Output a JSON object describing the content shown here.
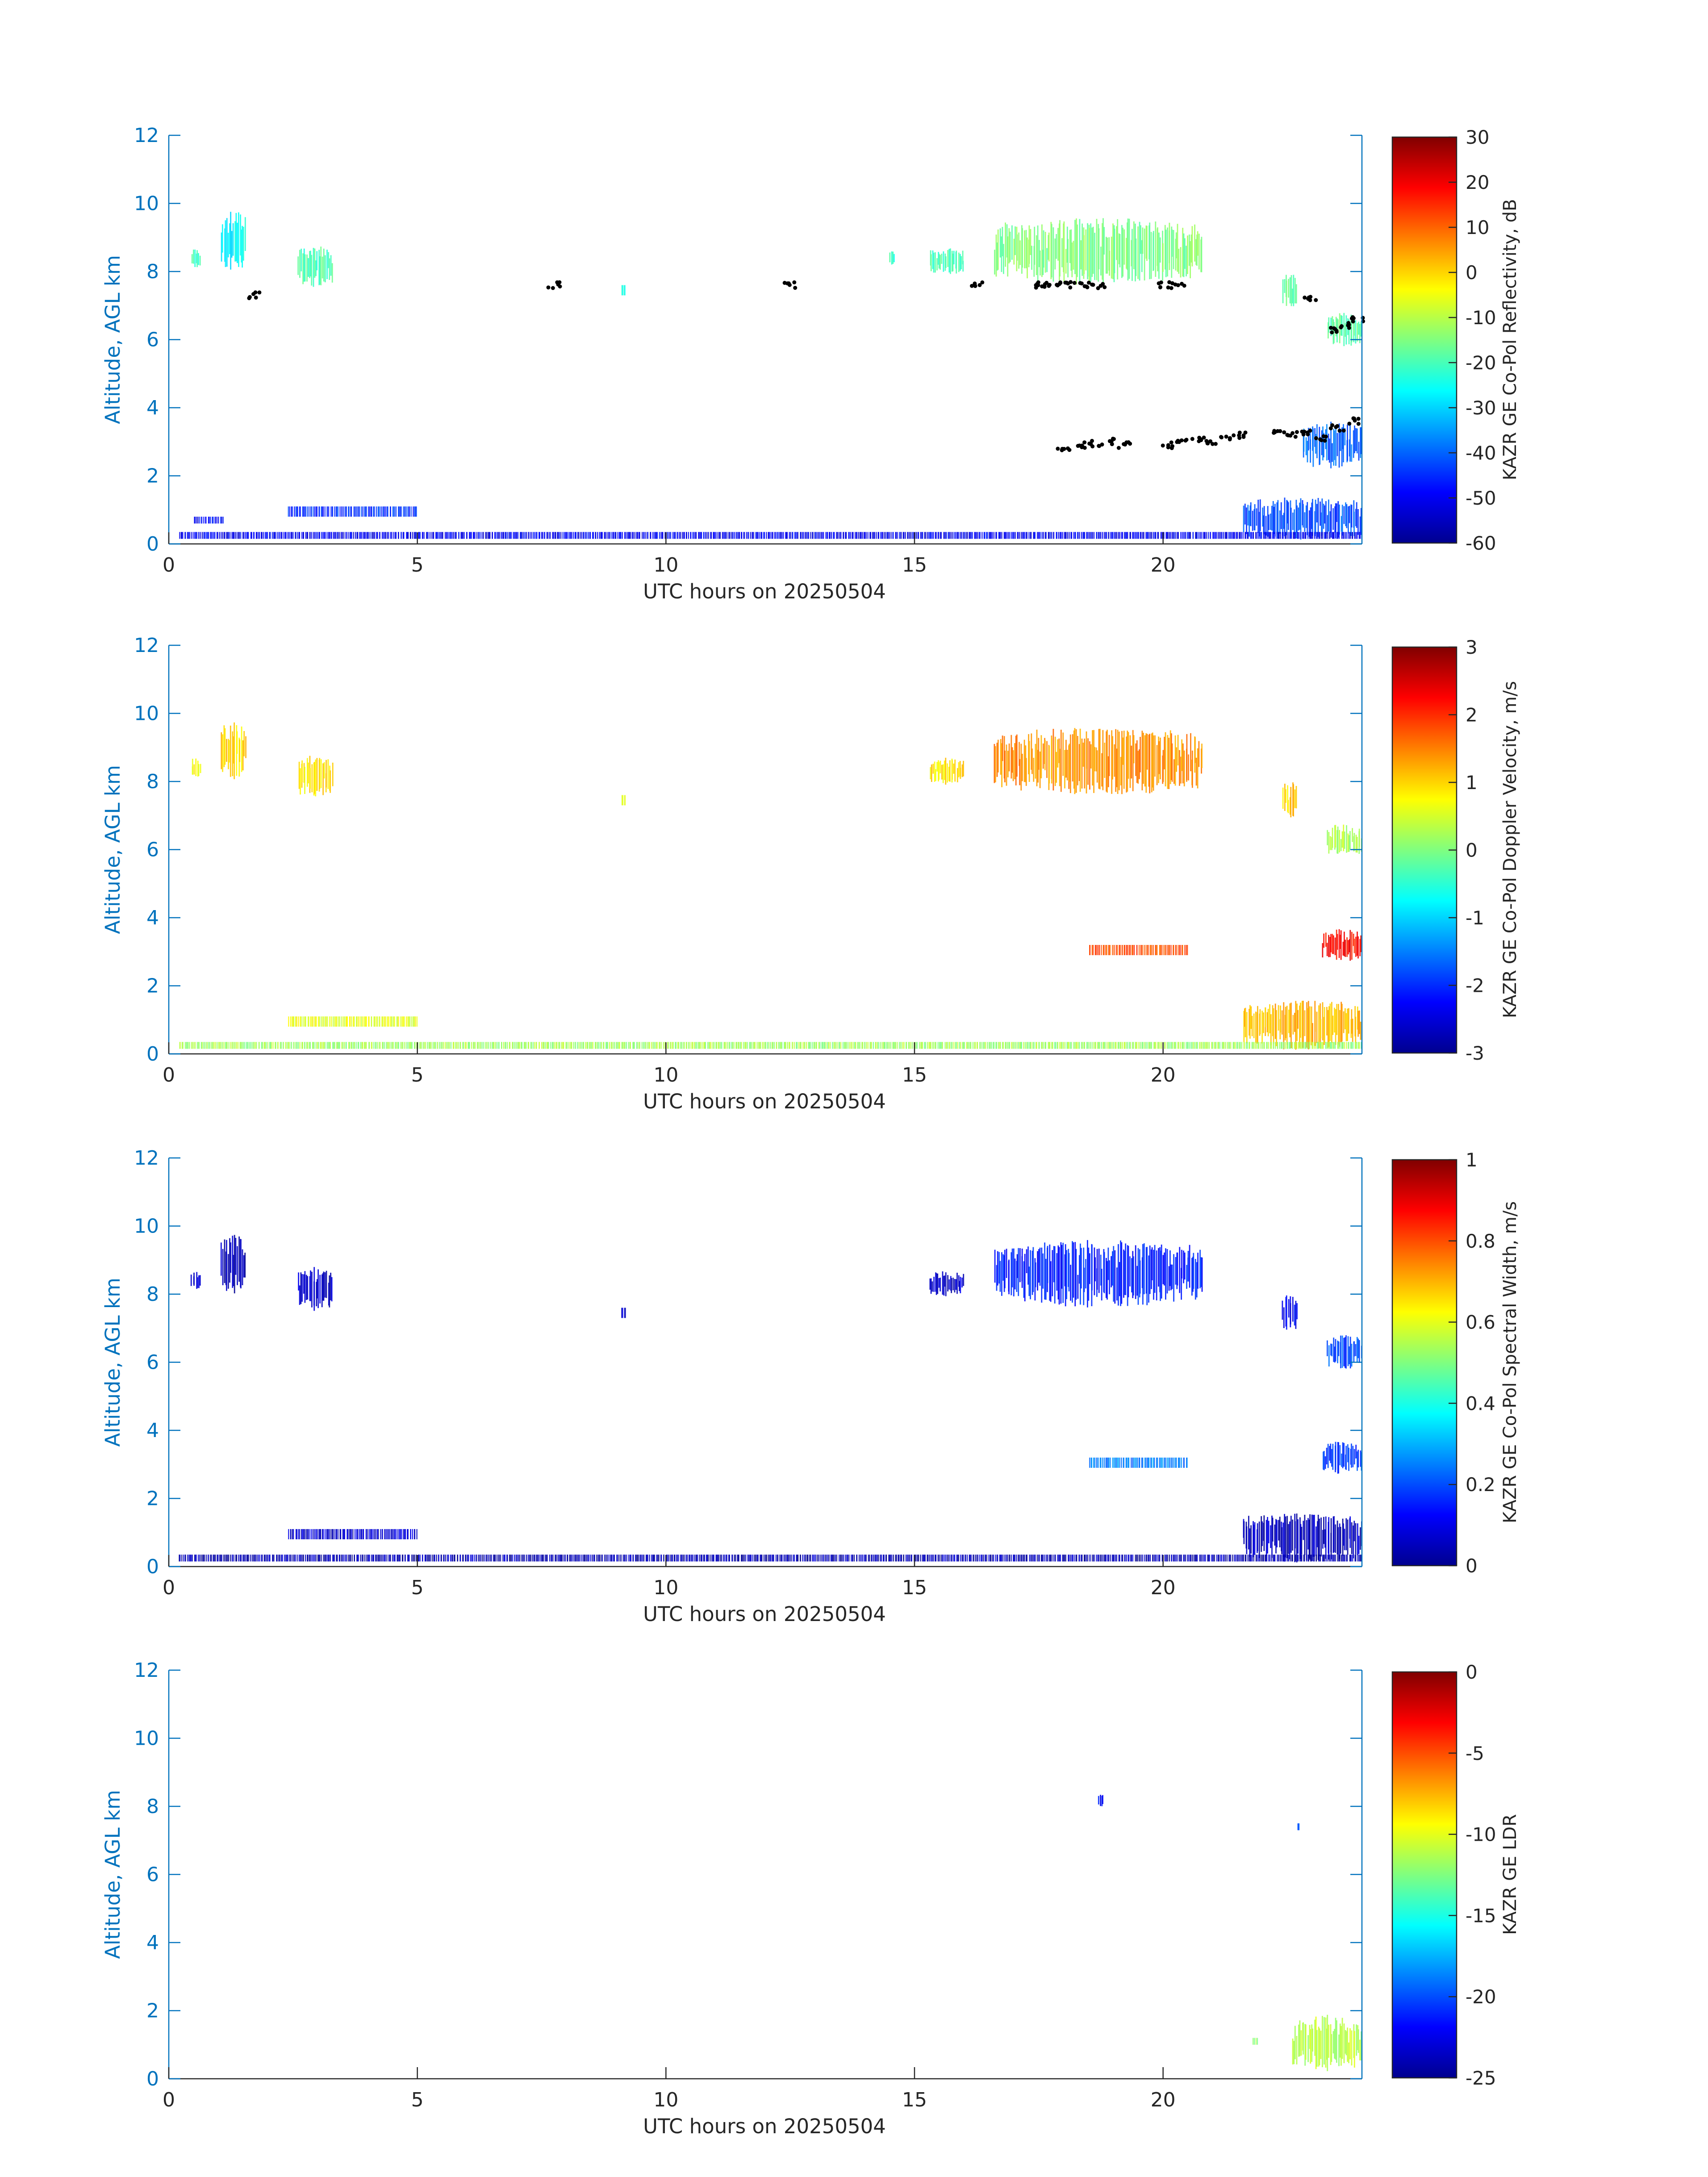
{
  "colors": {
    "axis_color": "#0072bd",
    "text_color": "#262626",
    "colormap": "jet",
    "marker_color": "#000000"
  },
  "chart_data": [
    {
      "type": "heatmap",
      "title": "",
      "xlabel": "UTC hours on 20250504",
      "ylabel": "Altitude, AGL km",
      "xlim": [
        0,
        24
      ],
      "ylim": [
        0,
        12
      ],
      "xticks": [
        "0",
        "5",
        "10",
        "15",
        "20"
      ],
      "yticks": [
        "0",
        "2",
        "4",
        "6",
        "8",
        "10",
        "12"
      ],
      "colorbar": {
        "label": "KAZR GE Co-Pol Reflectivity, dB",
        "range": [
          -60,
          30
        ],
        "ticks": [
          "-60",
          "-50",
          "-40",
          "-30",
          "-20",
          "-10",
          "0",
          "10",
          "20",
          "30"
        ]
      },
      "echo_regions": [
        {
          "t": [
            0.45,
            0.65
          ],
          "z": [
            8.1,
            8.7
          ],
          "value": -22
        },
        {
          "t": [
            1.05,
            1.55
          ],
          "z": [
            8.0,
            9.8
          ],
          "value": -26
        },
        {
          "t": [
            2.6,
            3.3
          ],
          "z": [
            7.5,
            8.8
          ],
          "value": -20
        },
        {
          "t": [
            9.1,
            9.2
          ],
          "z": [
            7.3,
            7.6
          ],
          "value": -25
        },
        {
          "t": [
            14.5,
            14.6
          ],
          "z": [
            8.2,
            8.6
          ],
          "value": -22
        },
        {
          "t": [
            15.3,
            16.0
          ],
          "z": [
            7.9,
            8.7
          ],
          "value": -20
        },
        {
          "t": [
            16.6,
            20.8
          ],
          "z": [
            7.6,
            9.6
          ],
          "value": -15
        },
        {
          "t": [
            22.4,
            22.7
          ],
          "z": [
            6.9,
            8.0
          ],
          "value": -18
        },
        {
          "t": [
            23.3,
            24.0
          ],
          "z": [
            5.8,
            6.8
          ],
          "value": -18
        },
        {
          "t": [
            22.8,
            24.0
          ],
          "z": [
            2.2,
            3.6
          ],
          "value": -40
        },
        {
          "t": [
            21.6,
            24.0
          ],
          "z": [
            0.1,
            1.4
          ],
          "value": -42
        },
        {
          "t": [
            0.2,
            24.0
          ],
          "z": [
            0.15,
            0.35
          ],
          "value": -50
        },
        {
          "t": [
            0.5,
            1.1
          ],
          "z": [
            0.6,
            0.8
          ],
          "value": -48
        },
        {
          "t": [
            2.4,
            5.0
          ],
          "z": [
            0.8,
            1.1
          ],
          "value": -45
        }
      ],
      "marker_points": [
        [
          1.75,
          7.3
        ],
        [
          7.75,
          7.6
        ],
        [
          12.5,
          7.6
        ],
        [
          16.25,
          7.6
        ],
        [
          17.4,
          7.6
        ],
        [
          17.6,
          7.6
        ],
        [
          17.8,
          7.6
        ],
        [
          18.1,
          7.6
        ],
        [
          18.4,
          7.6
        ],
        [
          18.7,
          7.6
        ],
        [
          20.0,
          7.6
        ],
        [
          20.3,
          7.6
        ],
        [
          22.95,
          7.2
        ],
        [
          23.5,
          6.3
        ],
        [
          23.7,
          6.4
        ],
        [
          23.9,
          6.6
        ],
        [
          18.0,
          2.8
        ],
        [
          18.3,
          2.9
        ],
        [
          18.6,
          2.95
        ],
        [
          18.9,
          3.0
        ],
        [
          19.2,
          2.9
        ],
        [
          20.1,
          2.9
        ],
        [
          20.4,
          3.0
        ],
        [
          20.7,
          3.1
        ],
        [
          21.0,
          3.0
        ],
        [
          21.3,
          3.1
        ],
        [
          21.6,
          3.2
        ],
        [
          22.3,
          3.3
        ],
        [
          22.6,
          3.2
        ],
        [
          22.9,
          3.3
        ],
        [
          23.2,
          3.1
        ],
        [
          23.5,
          3.4
        ],
        [
          23.8,
          3.6
        ]
      ]
    },
    {
      "type": "heatmap",
      "title": "",
      "xlabel": "UTC hours on 20250504",
      "ylabel": "Altitude, AGL km",
      "xlim": [
        0,
        24
      ],
      "ylim": [
        0,
        12
      ],
      "xticks": [
        "0",
        "5",
        "10",
        "15",
        "20"
      ],
      "yticks": [
        "0",
        "2",
        "4",
        "6",
        "8",
        "10",
        "12"
      ],
      "colorbar": {
        "label": "KAZR GE Co-Pol Doppler Velocity, m/s",
        "range": [
          -3,
          3
        ],
        "ticks": [
          "-3",
          "-2",
          "-1",
          "0",
          "1",
          "2",
          "3"
        ]
      },
      "echo_regions": [
        {
          "t": [
            0.45,
            0.65
          ],
          "z": [
            8.1,
            8.7
          ],
          "value": 0.8
        },
        {
          "t": [
            1.05,
            1.55
          ],
          "z": [
            8.0,
            9.8
          ],
          "value": 1.0
        },
        {
          "t": [
            2.6,
            3.3
          ],
          "z": [
            7.5,
            8.8
          ],
          "value": 0.9
        },
        {
          "t": [
            9.1,
            9.2
          ],
          "z": [
            7.3,
            7.6
          ],
          "value": 0.5
        },
        {
          "t": [
            15.3,
            16.0
          ],
          "z": [
            7.9,
            8.7
          ],
          "value": 0.9
        },
        {
          "t": [
            16.6,
            20.8
          ],
          "z": [
            7.6,
            9.6
          ],
          "value": 1.4
        },
        {
          "t": [
            22.4,
            22.7
          ],
          "z": [
            6.9,
            8.0
          ],
          "value": 1.0
        },
        {
          "t": [
            23.3,
            24.0
          ],
          "z": [
            5.8,
            6.8
          ],
          "value": 0.3
        },
        {
          "t": [
            18.5,
            20.5
          ],
          "z": [
            2.9,
            3.2
          ],
          "value": 1.8
        },
        {
          "t": [
            23.2,
            24.0
          ],
          "z": [
            2.7,
            3.7
          ],
          "value": 2.2
        },
        {
          "t": [
            21.6,
            24.0
          ],
          "z": [
            0.1,
            1.6
          ],
          "value": 1.2
        },
        {
          "t": [
            0.2,
            24.0
          ],
          "z": [
            0.15,
            0.35
          ],
          "value": 0.2
        },
        {
          "t": [
            2.4,
            5.0
          ],
          "z": [
            0.8,
            1.1
          ],
          "value": 0.6
        }
      ],
      "marker_points": []
    },
    {
      "type": "heatmap",
      "title": "",
      "xlabel": "UTC hours on 20250504",
      "ylabel": "Altitude, AGL km",
      "xlim": [
        0,
        24
      ],
      "ylim": [
        0,
        12
      ],
      "xticks": [
        "0",
        "5",
        "10",
        "15",
        "20"
      ],
      "yticks": [
        "0",
        "2",
        "4",
        "6",
        "8",
        "10",
        "12"
      ],
      "colorbar": {
        "label": "KAZR GE Co-Pol Spectral Width, m/s",
        "range": [
          0,
          1
        ],
        "ticks": [
          "0",
          "0.2",
          "0.4",
          "0.6",
          "0.8",
          "1"
        ]
      },
      "echo_regions": [
        {
          "t": [
            0.45,
            0.65
          ],
          "z": [
            8.1,
            8.7
          ],
          "value": 0.08
        },
        {
          "t": [
            1.05,
            1.55
          ],
          "z": [
            8.0,
            9.8
          ],
          "value": 0.05
        },
        {
          "t": [
            2.6,
            3.3
          ],
          "z": [
            7.5,
            8.8
          ],
          "value": 0.07
        },
        {
          "t": [
            9.1,
            9.2
          ],
          "z": [
            7.3,
            7.6
          ],
          "value": 0.1
        },
        {
          "t": [
            15.3,
            16.0
          ],
          "z": [
            7.9,
            8.7
          ],
          "value": 0.08
        },
        {
          "t": [
            16.6,
            20.8
          ],
          "z": [
            7.6,
            9.6
          ],
          "value": 0.15
        },
        {
          "t": [
            22.4,
            22.7
          ],
          "z": [
            6.9,
            8.0
          ],
          "value": 0.12
        },
        {
          "t": [
            23.3,
            24.0
          ],
          "z": [
            5.8,
            6.8
          ],
          "value": 0.2
        },
        {
          "t": [
            18.5,
            20.5
          ],
          "z": [
            2.9,
            3.2
          ],
          "value": 0.25
        },
        {
          "t": [
            23.2,
            24.0
          ],
          "z": [
            2.7,
            3.7
          ],
          "value": 0.18
        },
        {
          "t": [
            21.6,
            24.0
          ],
          "z": [
            0.1,
            1.6
          ],
          "value": 0.06
        },
        {
          "t": [
            0.2,
            24.0
          ],
          "z": [
            0.15,
            0.35
          ],
          "value": 0.05
        },
        {
          "t": [
            2.4,
            5.0
          ],
          "z": [
            0.8,
            1.1
          ],
          "value": 0.08
        }
      ],
      "marker_points": []
    },
    {
      "type": "heatmap",
      "title": "",
      "xlabel": "UTC hours on 20250504",
      "ylabel": "Altitude, AGL km",
      "xlim": [
        0,
        24
      ],
      "ylim": [
        0,
        12
      ],
      "xticks": [
        "0",
        "5",
        "10",
        "15",
        "20"
      ],
      "yticks": [
        "0",
        "2",
        "4",
        "6",
        "8",
        "10",
        "12"
      ],
      "colorbar": {
        "label": "KAZR GE LDR",
        "range": [
          -25,
          0
        ],
        "ticks": [
          "-25",
          "-20",
          "-15",
          "-10",
          "-5",
          "0"
        ]
      },
      "echo_regions": [
        {
          "t": [
            18.7,
            18.8
          ],
          "z": [
            7.9,
            8.4
          ],
          "value": -22
        },
        {
          "t": [
            22.7,
            22.75
          ],
          "z": [
            7.3,
            7.5
          ],
          "value": -20
        },
        {
          "t": [
            22.6,
            24.0
          ],
          "z": [
            0.2,
            1.9
          ],
          "value": -11
        },
        {
          "t": [
            21.8,
            21.9
          ],
          "z": [
            1.0,
            1.2
          ],
          "value": -12
        }
      ],
      "marker_points": []
    }
  ]
}
